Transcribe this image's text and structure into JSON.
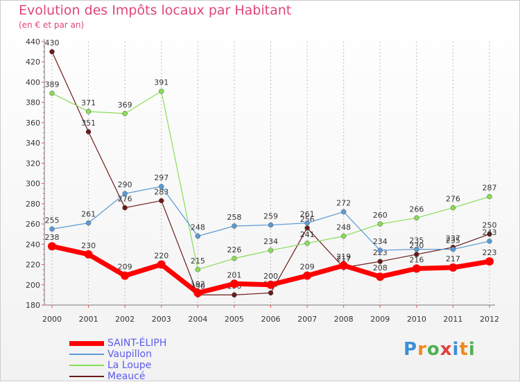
{
  "title": "Evolution des Impôts locaux par Habitant",
  "subtitle": "(en € et par an)",
  "logo_text": "Proxiti",
  "logo_colors": [
    "#3b8fd6",
    "#f08a1c",
    "#4fb04f",
    "#e04040",
    "#3b8fd6",
    "#f08a1c",
    "#4fb04f"
  ],
  "chart_data": {
    "type": "line",
    "title": "Evolution des Impôts locaux par Habitant",
    "subtitle": "(en € et par an)",
    "xlabel": "",
    "ylabel": "",
    "ylim": [
      180,
      440
    ],
    "yticks": [
      180,
      200,
      220,
      240,
      260,
      280,
      300,
      320,
      340,
      360,
      380,
      400,
      420,
      440
    ],
    "ytick_labels": [
      "180",
      "200",
      "220",
      "240",
      "260",
      "280",
      "300",
      "320",
      "340",
      "360",
      "380",
      "400",
      "420",
      "440"
    ],
    "categories": [
      "2000",
      "2001",
      "2002",
      "2003",
      "2004",
      "2005",
      "2006",
      "2007",
      "2008",
      "2009",
      "2010",
      "2011",
      "2012"
    ],
    "grid": "vertical-dashed",
    "legend_position": "bottom-left",
    "series": [
      {
        "name": "Meaucé",
        "color": "#6b1a1a",
        "width": 1.2,
        "marker": 3.5,
        "values": [
          430,
          351,
          276,
          283,
          190,
          190,
          192,
          256,
          217,
          223,
          230,
          237,
          250
        ],
        "labels": [
          "430",
          "351",
          "276",
          "283",
          "190",
          "190",
          "192",
          "256",
          "217",
          "223",
          "230",
          "237",
          "250"
        ]
      },
      {
        "name": "La Loupe",
        "color": "#88dd55",
        "width": 1.2,
        "marker": 3.5,
        "values": [
          389,
          371,
          369,
          391,
          215,
          226,
          234,
          241,
          248,
          260,
          266,
          276,
          287
        ],
        "labels": [
          "389",
          "371",
          "369",
          "391",
          "215",
          "226",
          "234",
          "241",
          "248",
          "260",
          "266",
          "276",
          "287"
        ]
      },
      {
        "name": "Vaupillon",
        "color": "#5a9ad5",
        "width": 1.2,
        "marker": 3.5,
        "values": [
          255,
          261,
          290,
          297,
          248,
          258,
          259,
          261,
          272,
          234,
          235,
          235,
          243
        ],
        "labels": [
          "255",
          "261",
          "290",
          "297",
          "248",
          "258",
          "259",
          "261",
          "272",
          "234",
          "235",
          "235",
          "243"
        ]
      },
      {
        "name": "SAINT-ÉLIPH",
        "color": "#ff0000",
        "width": 7,
        "marker": 6,
        "values": [
          238,
          230,
          209,
          220,
          192,
          201,
          200,
          209,
          219,
          208,
          216,
          217,
          223
        ],
        "labels": [
          "238",
          "230",
          "209",
          "220",
          "192",
          "201",
          "200",
          "209",
          "219",
          "208",
          "216",
          "217",
          "223"
        ]
      }
    ],
    "legend": [
      {
        "name": "SAINT-ÉLIPH",
        "color": "#ff0000"
      },
      {
        "name": "Vaupillon",
        "color": "#5a9ad5"
      },
      {
        "name": "La Loupe",
        "color": "#88dd55"
      },
      {
        "name": "Meaucé",
        "color": "#6b1a1a"
      }
    ]
  }
}
